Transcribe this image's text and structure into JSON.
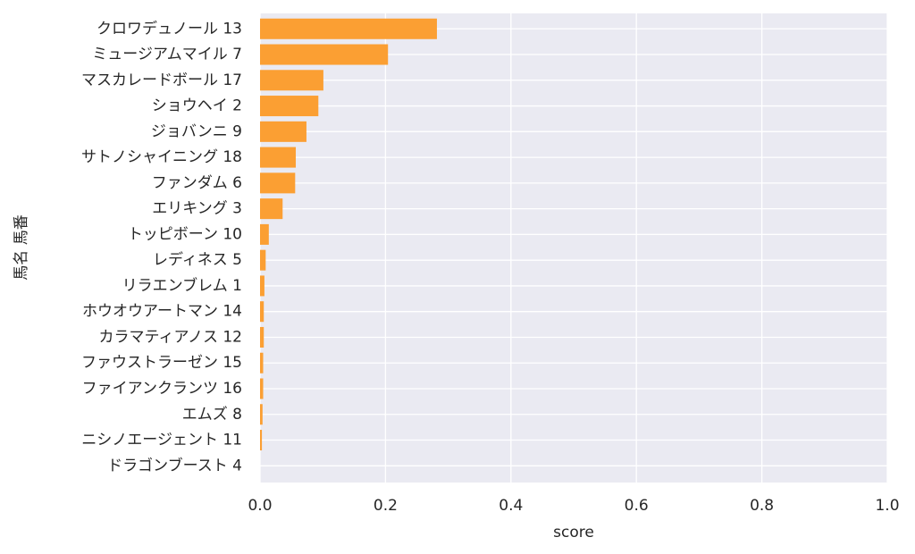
{
  "chart_data": {
    "type": "barh",
    "x_label": "score",
    "y_label": "馬名 馬番",
    "categories": [
      "クロワデュノール 13",
      "ミュージアムマイル 7",
      "マスカレードボール 17",
      "ショウヘイ 2",
      "ジョバンニ 9",
      "サトノシャイニング 18",
      "ファンダム 6",
      "エリキング 3",
      "トッピボーン 10",
      "レディネス 5",
      "リラエンブレム 1",
      "ホウオウアートマン 14",
      "カラマティアノス 12",
      "ファウストラーゼン 15",
      "ファイアンクランツ 16",
      "エムズ 8",
      "ニシノエージェント 11",
      "ドラゴンブースト 4"
    ],
    "values": [
      0.282,
      0.204,
      0.101,
      0.093,
      0.074,
      0.057,
      0.056,
      0.036,
      0.014,
      0.009,
      0.007,
      0.006,
      0.006,
      0.005,
      0.005,
      0.004,
      0.003,
      0.0
    ],
    "color": "#fb9f33",
    "xlim": [
      0,
      1
    ],
    "xticks": [
      {
        "value": 0,
        "label": "0.0"
      },
      0.2,
      0.4,
      0.6,
      0.8,
      {
        "value": 1,
        "label": "1.0"
      }
    ],
    "grid": true
  }
}
